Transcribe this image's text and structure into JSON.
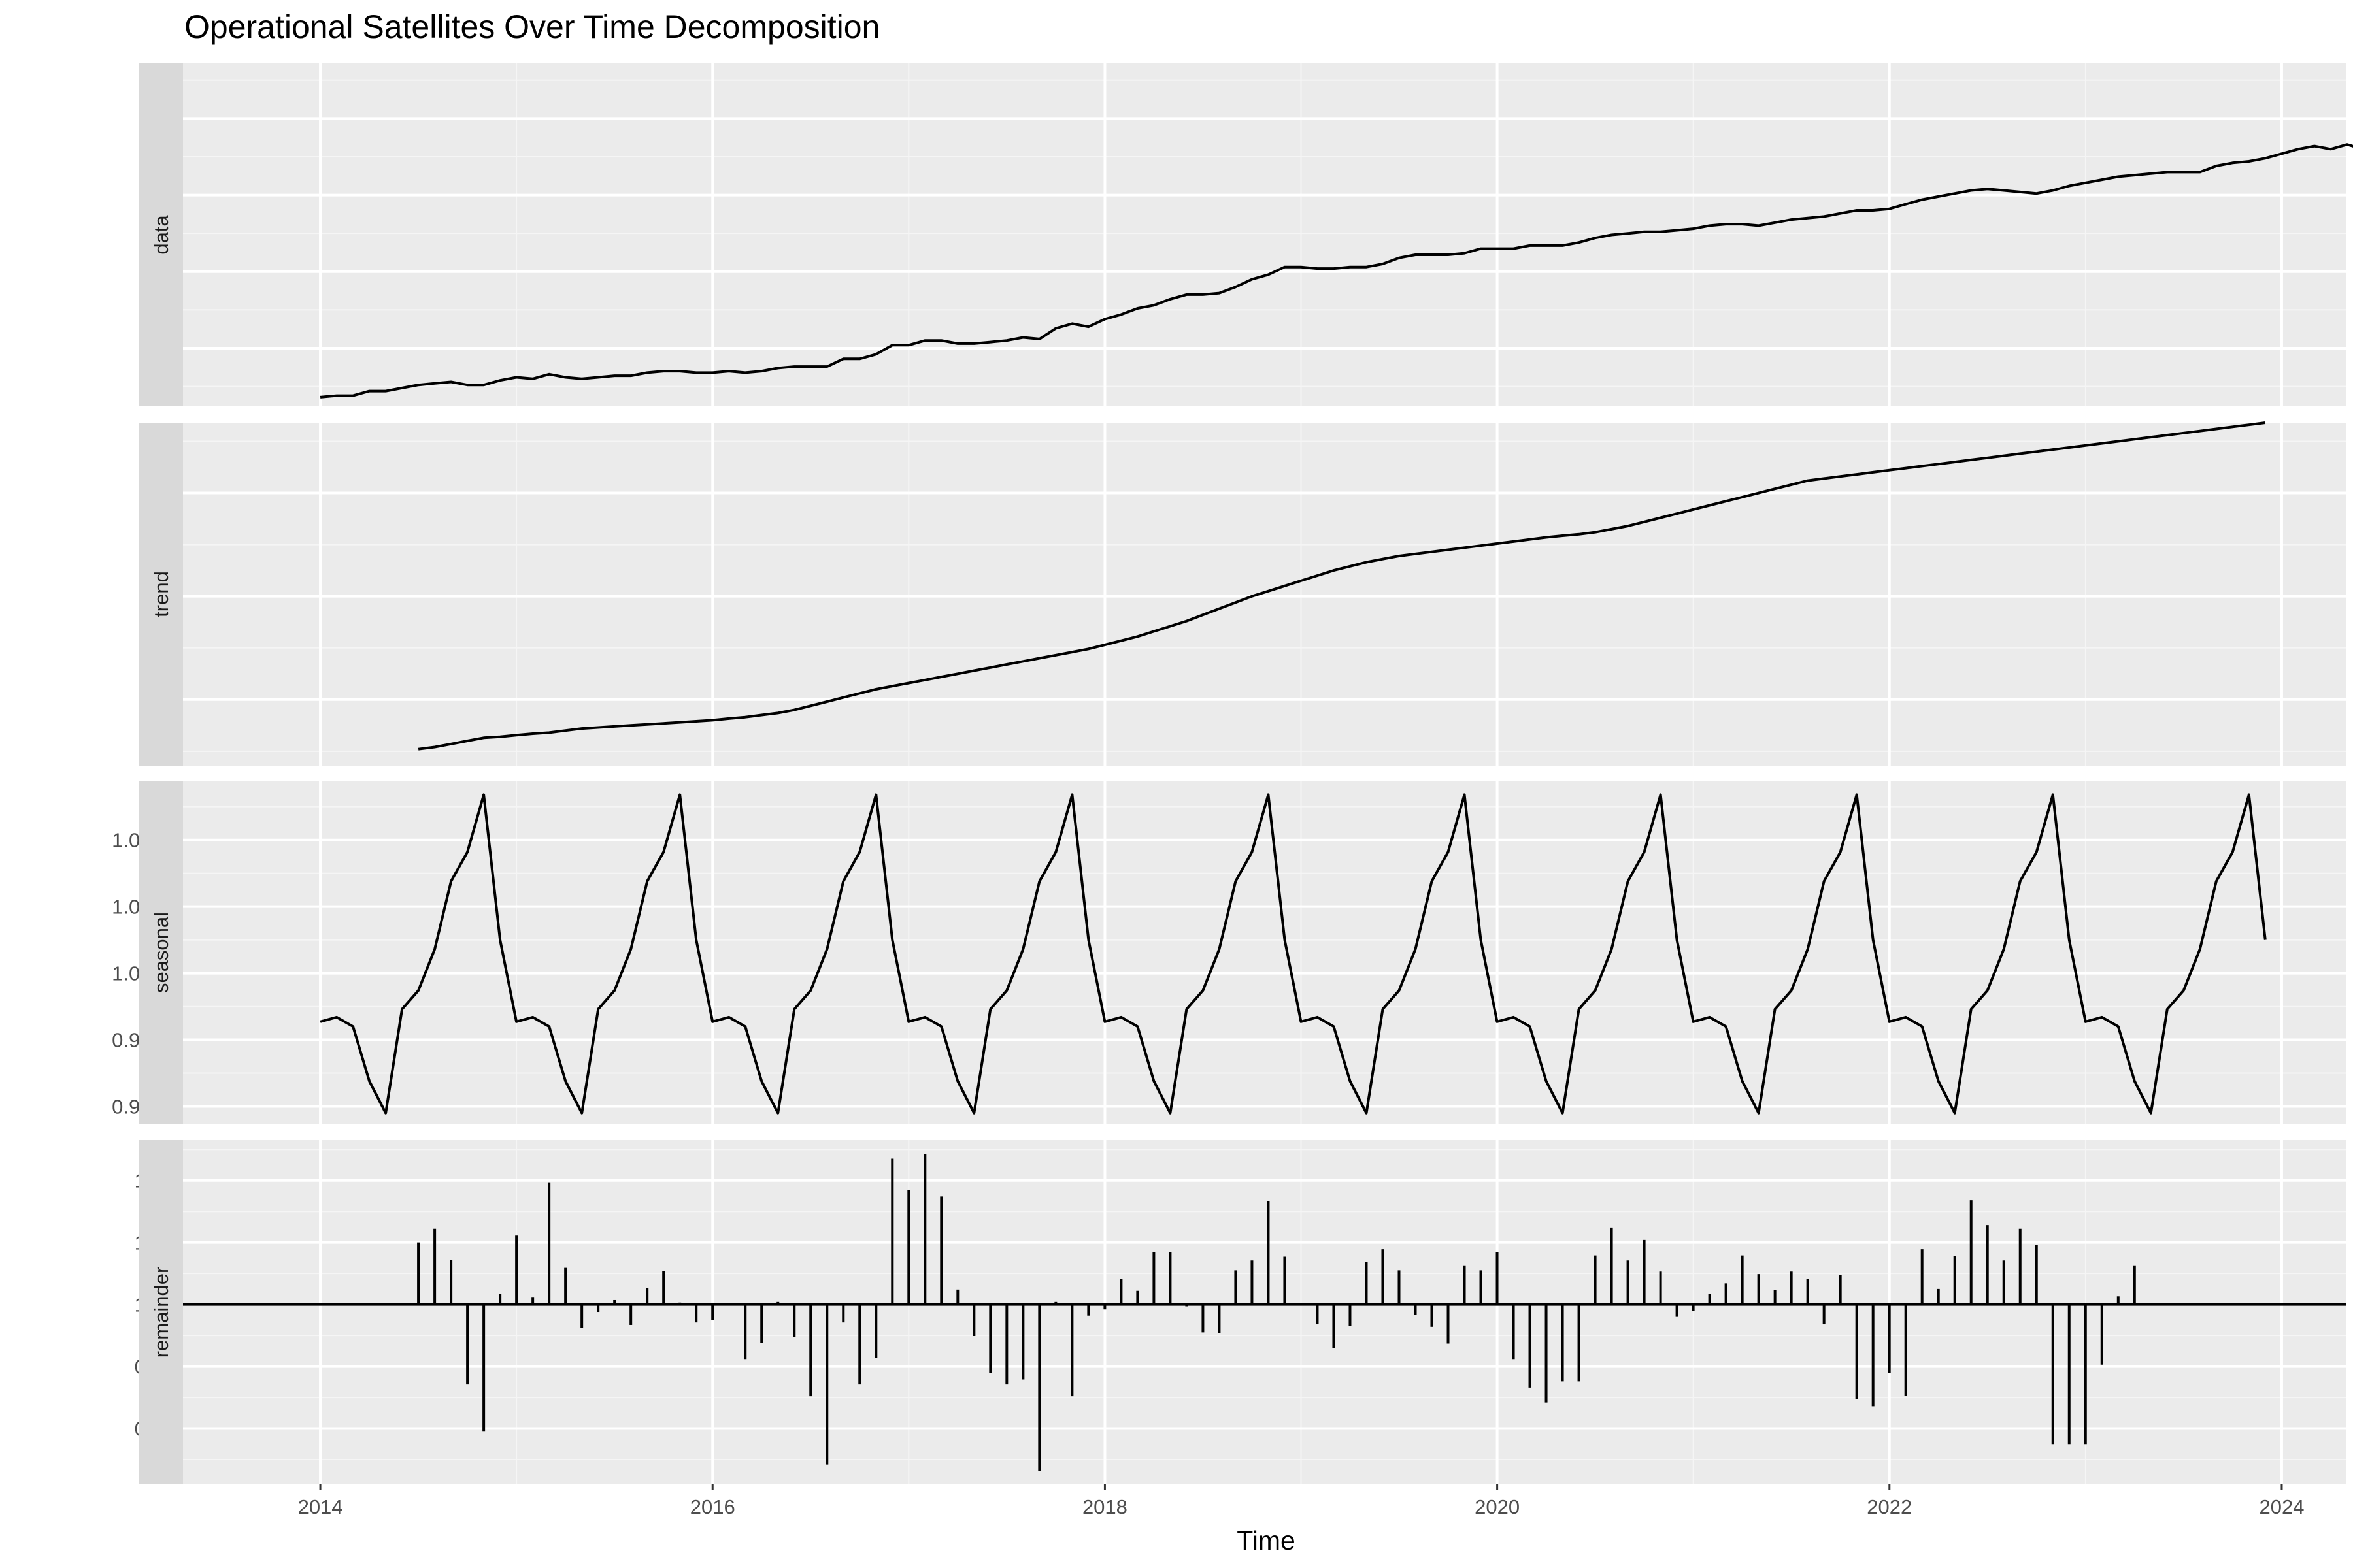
{
  "chart_data": {
    "type": "line",
    "title": "Operational Satellites Over Time Decomposition",
    "xlabel": "Time",
    "x_ticks": [
      "2014",
      "2016",
      "2018",
      "2020",
      "2022",
      "2024"
    ],
    "x_tick_values": [
      2014,
      2016,
      2018,
      2020,
      2022,
      2024
    ],
    "x_range": [
      2013.3,
      2024.33
    ],
    "x_start": 2014.0,
    "x_step": 0.08333,
    "grid": true,
    "panels": [
      {
        "name": "data",
        "geom": "line",
        "ylim": [
          162,
          386
        ],
        "y_ticks": [
          "200",
          "250",
          "300",
          "350"
        ],
        "y_tick_values": [
          200,
          250,
          300,
          350
        ],
        "values": [
          168,
          169,
          169,
          172,
          172,
          174,
          176,
          177,
          178,
          176,
          176,
          179,
          181,
          180,
          183,
          181,
          180,
          181,
          182,
          182,
          184,
          185,
          185,
          184,
          184,
          185,
          184,
          185,
          187,
          188,
          188,
          188,
          193,
          193,
          196,
          202,
          202,
          205,
          205,
          203,
          203,
          204,
          205,
          207,
          206,
          213,
          216,
          214,
          219,
          222,
          226,
          228,
          232,
          235,
          235,
          236,
          240,
          245,
          248,
          253,
          253,
          252,
          252,
          253,
          253,
          255,
          259,
          261,
          261,
          261,
          262,
          265,
          265,
          265,
          267,
          267,
          267,
          269,
          272,
          274,
          275,
          276,
          276,
          277,
          278,
          280,
          281,
          281,
          280,
          282,
          284,
          285,
          286,
          288,
          290,
          290,
          291,
          294,
          297,
          299,
          301,
          303,
          304,
          303,
          302,
          301,
          303,
          306,
          308,
          310,
          312,
          313,
          314,
          315,
          315,
          315,
          319,
          321,
          322,
          324,
          327,
          330,
          332,
          330,
          333,
          330,
          328,
          332,
          334,
          336,
          338,
          339,
          350,
          378
        ],
        "line_start": 0
      },
      {
        "name": "trend",
        "geom": "line",
        "ylim": [
          168,
          334
        ],
        "y_ticks": [
          "200",
          "250",
          "300"
        ],
        "y_tick_values": [
          200,
          250,
          300
        ],
        "values": [
          176,
          177,
          178.5,
          180,
          181.5,
          182,
          182.8,
          183.5,
          184,
          185,
          186,
          186.5,
          187,
          187.5,
          188,
          188.5,
          189,
          189.5,
          190,
          190.8,
          191.5,
          192.5,
          193.5,
          195,
          197,
          199,
          201,
          203,
          205,
          206.5,
          208,
          209.5,
          211,
          212.5,
          214,
          215.5,
          217,
          218.5,
          220,
          221.5,
          223,
          224.5,
          226.5,
          228.5,
          230.5,
          233,
          235.5,
          238,
          241,
          244,
          247,
          250,
          252.5,
          255,
          257.5,
          260,
          262.5,
          264.5,
          266.5,
          268,
          269.5,
          270.5,
          271.5,
          272.5,
          273.5,
          274.5,
          275.5,
          276.5,
          277.5,
          278.5,
          279.3,
          280,
          281,
          282.5,
          284,
          286,
          288,
          290,
          292,
          294,
          296,
          298,
          300,
          302,
          304,
          306,
          307,
          308,
          309,
          310,
          311,
          312,
          313,
          314,
          315,
          316,
          317,
          318,
          319,
          320,
          321,
          322,
          323,
          324,
          325,
          326,
          327,
          328,
          329,
          330,
          331,
          332,
          333,
          334
        ],
        "line_start": 6
      },
      {
        "name": "seasonal",
        "geom": "line",
        "ylim": [
          0.99435,
          1.0072
        ],
        "y_ticks": [
          "0.9950",
          "0.9975",
          "1.0000",
          "1.0025",
          "1.0050"
        ],
        "y_tick_values": [
          0.995,
          0.9975,
          1.0,
          1.0025,
          1.005
        ],
        "cycle": [
          0.99818,
          0.99835,
          0.998,
          0.99595,
          0.99475,
          0.99865,
          0.99935,
          1.0009,
          1.00345,
          1.00455,
          1.0067,
          1.00125
        ],
        "cycles": 10,
        "line_start": 0
      },
      {
        "name": "remainder",
        "geom": "bar",
        "baseline": 1.0,
        "ylim": [
          0.971,
          1.0265
        ],
        "y_ticks": [
          "0.98",
          "0.99",
          "1.00",
          "1.01",
          "1.02"
        ],
        "y_tick_values": [
          0.98,
          0.99,
          1.0,
          1.01,
          1.02
        ],
        "values": [
          1.01,
          1.0122,
          1.0072,
          0.9871,
          0.9795,
          1.0017,
          1.0111,
          1.0012,
          1.0197,
          1.0059,
          0.9962,
          0.9988,
          1.0007,
          0.9967,
          1.0027,
          1.0054,
          1.0003,
          0.9971,
          0.9975,
          0.9999,
          0.9912,
          0.9938,
          1.0004,
          0.9947,
          0.9852,
          0.9742,
          0.9971,
          0.9871,
          0.9914,
          1.0235,
          1.0185,
          1.0242,
          1.0174,
          1.0024,
          0.9949,
          0.9889,
          0.9871,
          0.9879,
          0.9731,
          1.0004,
          0.9852,
          0.9982,
          0.9992,
          1.0041,
          1.0022,
          1.0084,
          1.0084,
          0.9997,
          0.9955,
          0.9954,
          1.0055,
          1.0071,
          1.0167,
          1.0077,
          1.0001,
          0.9968,
          0.993,
          0.9965,
          1.0068,
          1.0089,
          1.0055,
          0.9983,
          0.9964,
          0.9937,
          1.0063,
          1.0055,
          1.0084,
          0.9912,
          0.9866,
          0.9842,
          0.9876,
          0.9876,
          1.0079,
          1.0124,
          1.0071,
          1.0104,
          1.0053,
          0.998,
          0.999,
          1.0017,
          1.0034,
          1.0079,
          1.0049,
          1.0023,
          1.0053,
          1.0041,
          0.9968,
          1.0048,
          0.9847,
          0.9836,
          0.9889,
          0.9853,
          1.0089,
          1.0025,
          1.0078,
          1.0168,
          1.0128,
          1.0071,
          1.0122,
          1.0096,
          0.9775,
          0.9775,
          0.9775,
          0.9903,
          1.0013,
          1.0063
        ],
        "bar_start": 6
      }
    ]
  }
}
